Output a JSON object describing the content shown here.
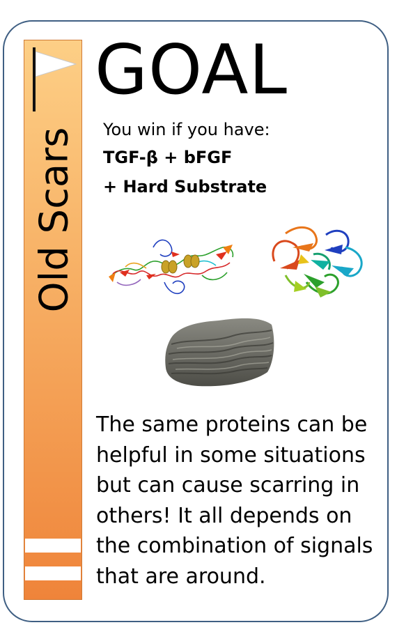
{
  "card": {
    "category": "Old Scars",
    "title": "GOAL",
    "win_intro": "You win if you have:",
    "requirements": [
      "TGF-β + bFGF",
      "+ Hard Substrate"
    ],
    "description_lines": [
      "The same proteins can be",
      "helpful in some situations",
      "but can cause scarring in",
      "others! It all depends on",
      "the combination of signals",
      "that are around."
    ]
  },
  "colors": {
    "border": "#3f5f83",
    "sidebar_top": "#fdcf86",
    "sidebar_bottom": "#ef843a"
  },
  "icons": [
    "flag-icon",
    "protein-structure-tgf-beta",
    "protein-structure-bfgf",
    "rock-substrate"
  ]
}
